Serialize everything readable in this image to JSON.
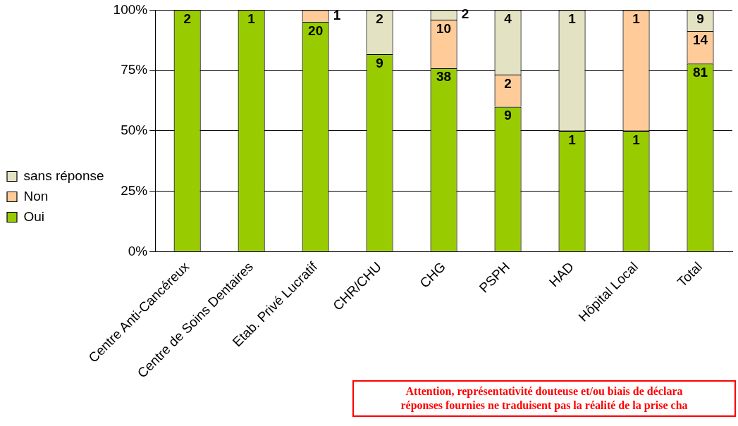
{
  "chart_data": {
    "type": "bar",
    "stacked": true,
    "categories": [
      "Centre Anti-Cancéreux",
      "Centre de Soins Dentaires",
      "Etab. Privé Lucratif",
      "CHR/CHU",
      "CHG",
      "PSPH",
      "HAD",
      "Hôpital Local",
      "Total"
    ],
    "series": [
      {
        "name": "Oui",
        "color": "#99cc00",
        "values": [
          100,
          100,
          95.2,
          81.8,
          76,
          60,
          50,
          50,
          77.9
        ]
      },
      {
        "name": "Non",
        "color": "#ffcc99",
        "values": [
          0,
          0,
          4.8,
          0,
          20,
          13.3,
          0,
          50,
          13.5
        ]
      },
      {
        "name": "sans réponse",
        "color": "#e3e3c4",
        "values": [
          0,
          0,
          0,
          18.2,
          4,
          26.7,
          50,
          0,
          8.7
        ]
      }
    ],
    "ylim": [
      0,
      100
    ],
    "yticks": [
      {
        "value": 0,
        "label": "0%"
      },
      {
        "value": 25,
        "label": "25%"
      },
      {
        "value": 50,
        "label": "50%"
      },
      {
        "value": 75,
        "label": "75%"
      },
      {
        "value": 100,
        "label": "100%"
      }
    ],
    "grid": "y",
    "legend": "left",
    "annotations": [
      "Attention, représentativité douteuse et/ou biais de déclara",
      "réponses fournies ne traduisent pas la réalité de la prise cha",
      {
        "text": "2",
        "x": "Centre Anti-Cancéreux",
        "y": 100
      },
      {
        "text": "1",
        "x": "Centre de Soins Dentaires",
        "y": 100
      },
      {
        "text": "20",
        "x": "Etab. Privé Lucratif",
        "y": 95.2
      },
      {
        "text": "1",
        "x": "Etab. Privé Lucratif",
        "y": 100
      },
      {
        "text": "9",
        "x": "CHR/CHU",
        "y": 81.8
      },
      {
        "text": "2",
        "x": "CHR/CHU",
        "y": 100
      },
      {
        "text": "38",
        "x": "CHG",
        "y": 76
      },
      {
        "text": "10",
        "x": "CHG",
        "y": 96
      },
      {
        "text": "2",
        "x": "CHG",
        "y": 100
      },
      {
        "text": "9",
        "x": "PSPH",
        "y": 60
      },
      {
        "text": "2",
        "x": "PSPH",
        "y": 73.3
      },
      {
        "text": "4",
        "x": "PSPH",
        "y": 100
      },
      {
        "text": "1",
        "x": "HAD",
        "y": 50
      },
      {
        "text": "1",
        "x": "HAD",
        "y": 100
      },
      {
        "text": "1",
        "x": "Hôpital Local",
        "y": 50
      },
      {
        "text": "1",
        "x": "Hôpital Local",
        "y": 100
      },
      {
        "text": "81",
        "x": "Total",
        "y": 77.9
      },
      {
        "text": "14",
        "x": "Total",
        "y": 91.4
      },
      {
        "text": "9",
        "x": "Total",
        "y": 100
      }
    ]
  }
}
